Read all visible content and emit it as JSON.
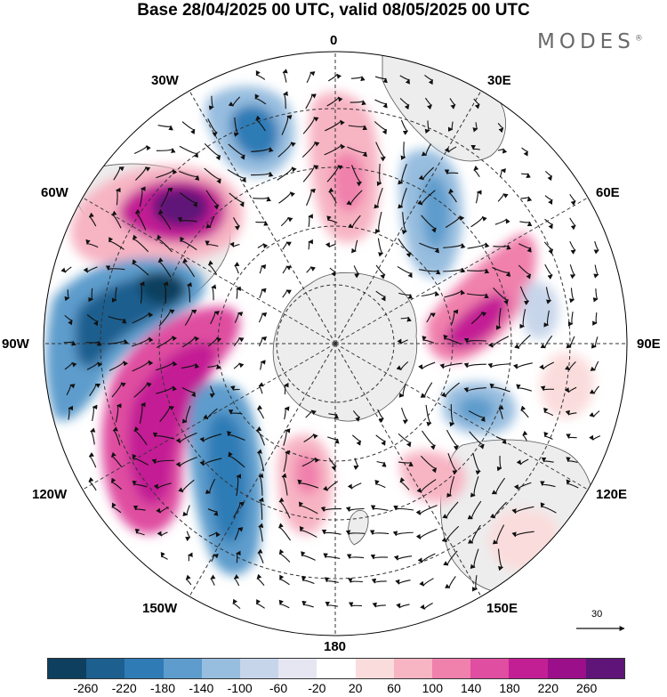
{
  "title": "Base 28/04/2025 00 UTC, valid 08/05/2025 00 UTC",
  "brand": "MODES",
  "brand_mark": "®",
  "longitude_labels": {
    "0": "0",
    "30E": "30E",
    "60E": "60E",
    "90E": "90E",
    "120E": "120E",
    "150E": "150E",
    "180": "180",
    "150W": "150W",
    "120W": "120W",
    "90W": "90W",
    "60W": "60W",
    "30W": "30W"
  },
  "vector_scale_label": "30",
  "colorbar": {
    "colors": [
      "#0e3f5f",
      "#1d5f8f",
      "#2f7bb6",
      "#5d9ccc",
      "#97bddf",
      "#c7d5ea",
      "#e6e6f2",
      "#ffffff",
      "#fbdcdc",
      "#f7b4c3",
      "#f080ac",
      "#df4ea0",
      "#c31f95",
      "#9c0f8a",
      "#5f1478"
    ],
    "ticks": [
      "-260",
      "-220",
      "-180",
      "-140",
      "-100",
      "-60",
      "-20",
      "20",
      "60",
      "100",
      "140",
      "180",
      "220",
      "260"
    ]
  },
  "colors": {
    "land": "#ededed",
    "coast": "#555555",
    "grid": "#333333",
    "arrow": "#111111"
  }
}
